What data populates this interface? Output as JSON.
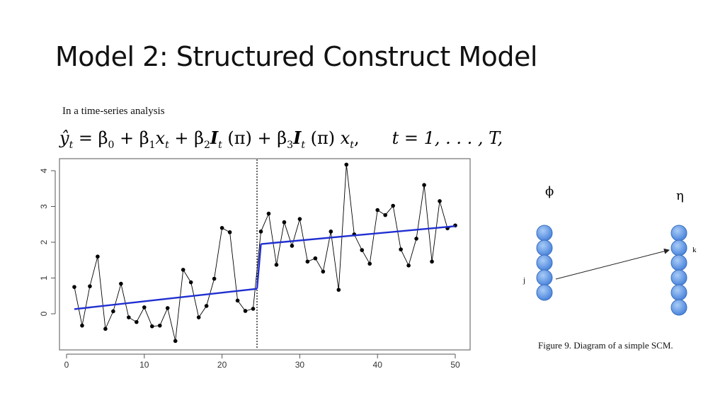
{
  "slide": {
    "title_part1": "Model 2:",
    "title_part2": " Structured Construct Model",
    "subtitle": "In a time-series analysis",
    "formula": {
      "yhat": "ŷ",
      "t": "t",
      "eq": " = β",
      "b0": "0",
      "plus1": " + β",
      "b1": "1",
      "x": "x",
      "plus2": " + β",
      "b2": "2",
      "I": "I",
      "pi": " (π)",
      "plus3": " + β",
      "b3": "3",
      "comma": ",",
      "trange": "t = 1, . . . , T,"
    }
  },
  "chart_data": {
    "type": "line",
    "title": "",
    "xlabel": "",
    "ylabel": "",
    "xlim": [
      0,
      51
    ],
    "ylim": [
      -1,
      4.4
    ],
    "xticks": [
      0,
      10,
      20,
      30,
      40,
      50
    ],
    "yticks": [
      0,
      1,
      2,
      3,
      4
    ],
    "grid": false,
    "intervention_x": 24.5,
    "series": [
      {
        "type": "observed",
        "color": "#000000",
        "x": [
          1,
          2,
          3,
          4,
          5,
          6,
          7,
          8,
          9,
          10,
          11,
          12,
          13,
          14,
          15,
          16,
          17,
          18,
          19,
          20,
          21,
          22,
          23,
          24,
          25,
          26,
          27,
          28,
          29,
          30,
          31,
          32,
          33,
          34,
          35,
          36,
          37,
          38,
          39,
          40,
          41,
          42,
          43,
          44,
          45,
          46,
          47,
          48,
          49,
          50
        ],
        "y": [
          0.75,
          -0.33,
          0.77,
          1.6,
          -0.42,
          0.07,
          0.84,
          -0.1,
          -0.23,
          0.18,
          -0.35,
          -0.33,
          0.16,
          -0.76,
          1.23,
          0.88,
          -0.1,
          0.22,
          0.98,
          2.4,
          2.28,
          0.37,
          0.08,
          0.14,
          2.3,
          2.8,
          1.37,
          2.56,
          1.9,
          2.65,
          1.46,
          1.55,
          1.18,
          2.3,
          0.67,
          4.17,
          2.22,
          1.78,
          1.4,
          2.9,
          2.76,
          3.02,
          1.8,
          1.35,
          2.1,
          3.6,
          1.46,
          3.15,
          2.39,
          2.47
        ]
      },
      {
        "type": "fitted",
        "color": "#1f2fd0",
        "segments": [
          {
            "x": [
              1,
              24.5
            ],
            "y": [
              0.13,
              0.7
            ]
          },
          {
            "x": [
              24.5,
              25
            ],
            "y": [
              0.7,
              1.95
            ]
          },
          {
            "x": [
              25,
              50
            ],
            "y": [
              1.95,
              2.45
            ]
          }
        ]
      }
    ]
  },
  "diagram": {
    "phi_label": "ϕ",
    "eta_label": "η",
    "j_label": "j",
    "k_label": "k",
    "node_color": "#5b95e6",
    "left_nodes": 5,
    "right_nodes": 6,
    "caption": "Figure 9.  Diagram of a simple SCM."
  }
}
